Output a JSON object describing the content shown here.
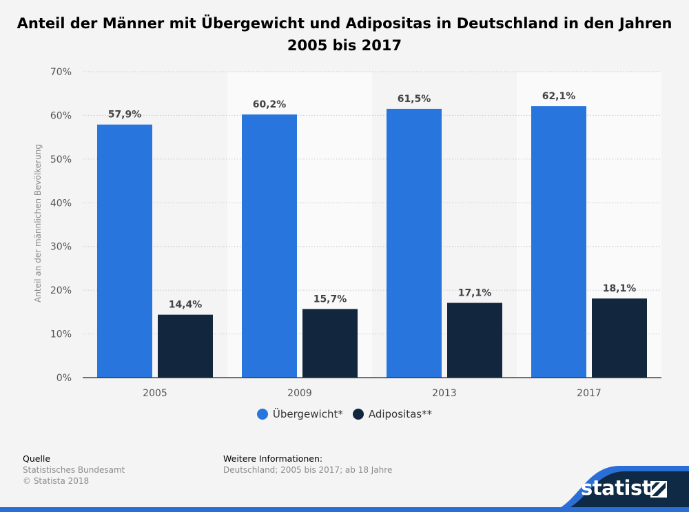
{
  "title": "Anteil der Männer mit Übergewicht und Adipositas in Deutschland in den Jahren 2005 bis 2017",
  "colors": {
    "series_1": "#2775dd",
    "series_2": "#12263d",
    "brand": "#2b6fd6",
    "brand_dark": "#0f2a44"
  },
  "legend": {
    "items": [
      {
        "label": "Übergewicht*",
        "color": "#2775dd"
      },
      {
        "label": "Adipositas**",
        "color": "#12263d"
      }
    ]
  },
  "footer": {
    "source_heading": "Quelle",
    "source_lines": [
      "Statistisches Bundesamt",
      "© Statista 2018"
    ],
    "info_heading": "Weitere Informationen:",
    "info_line": "Deutschland; 2005 bis 2017; ab 18 Jahre"
  },
  "brand": {
    "name": "statista"
  },
  "chart_data": {
    "type": "bar",
    "title": "Anteil der Männer mit Übergewicht und Adipositas in Deutschland in den Jahren 2005 bis 2017",
    "xlabel": "",
    "ylabel": "Anteil an der männlichen Bevölkerung",
    "categories": [
      "2005",
      "2009",
      "2013",
      "2017"
    ],
    "series": [
      {
        "name": "Übergewicht*",
        "values": [
          57.9,
          60.2,
          61.5,
          62.1
        ],
        "labels": [
          "57,9%",
          "60,2%",
          "61,5%",
          "62,1%"
        ]
      },
      {
        "name": "Adipositas**",
        "values": [
          14.4,
          15.7,
          17.1,
          18.1
        ],
        "labels": [
          "14,4%",
          "15,7%",
          "17,1%",
          "18,1%"
        ]
      }
    ],
    "ylim": [
      0,
      70
    ],
    "yticks": [
      0,
      10,
      20,
      30,
      40,
      50,
      60,
      70
    ],
    "ytick_labels": [
      "0%",
      "10%",
      "20%",
      "30%",
      "40%",
      "50%",
      "60%",
      "70%"
    ],
    "grid": true,
    "legend_position": "bottom"
  }
}
